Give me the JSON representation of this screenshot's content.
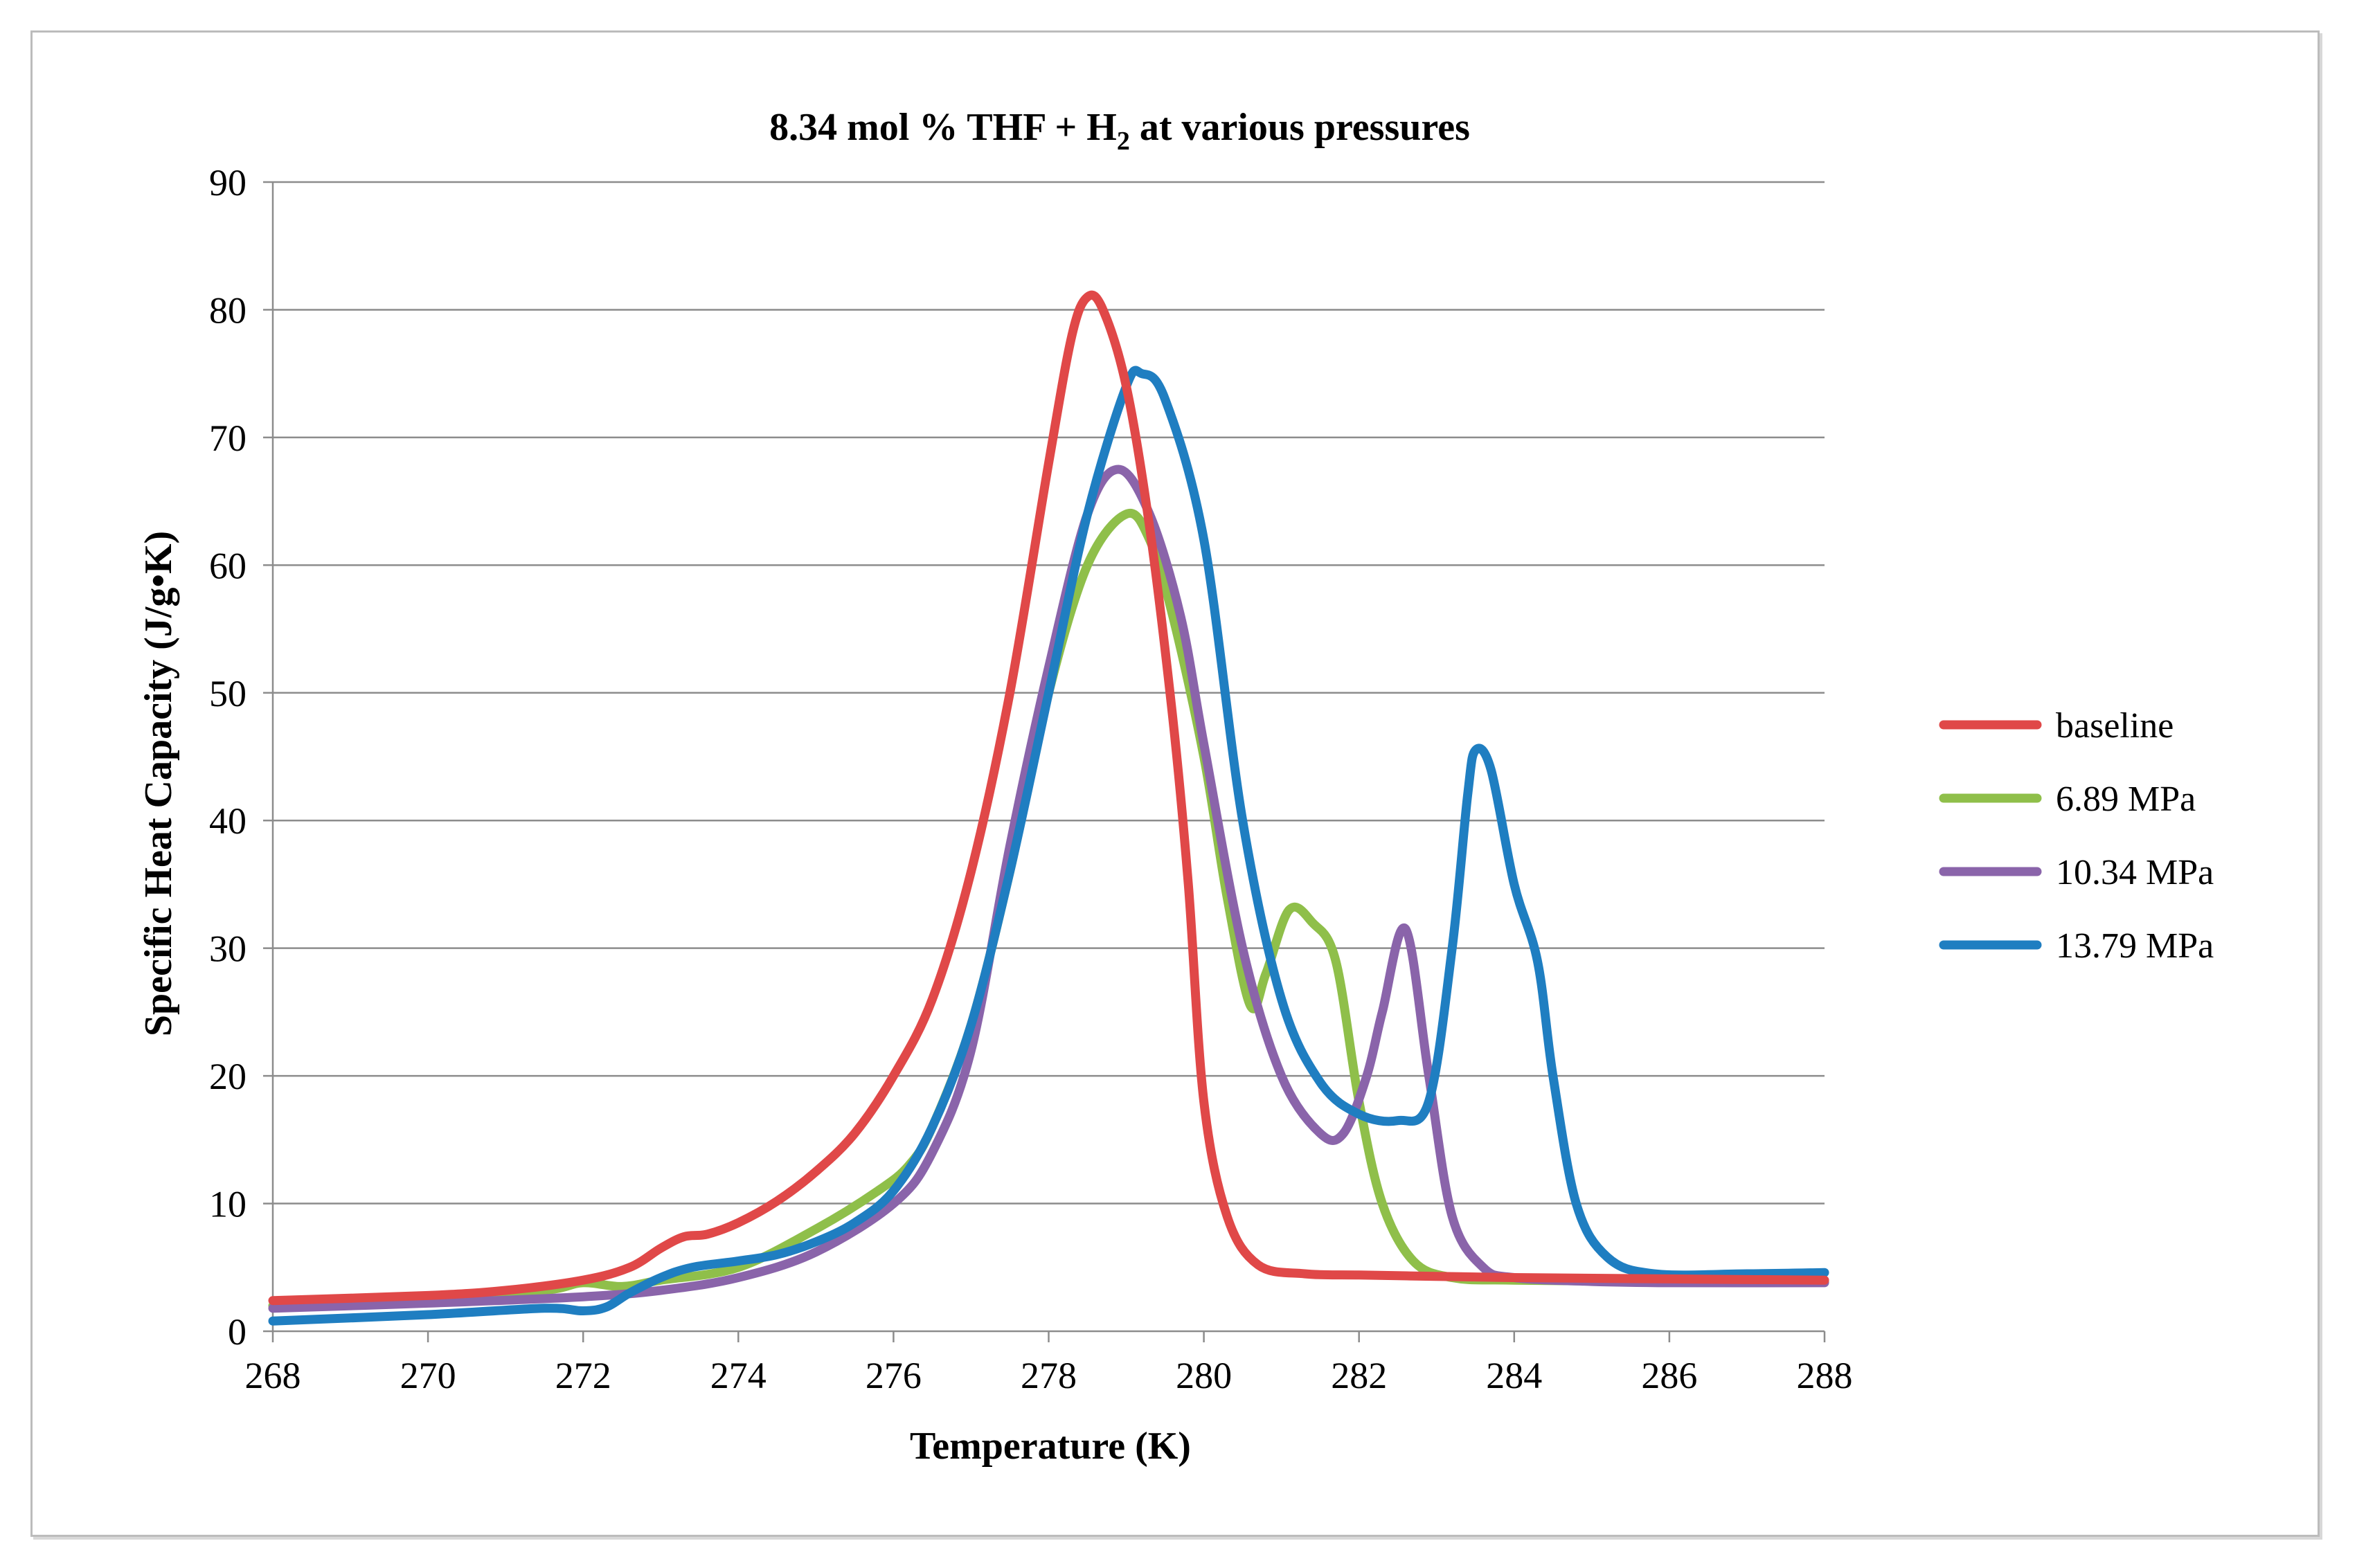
{
  "chart_data": {
    "type": "line",
    "title": "8.34 mol % THF + H",
    "title_subscript": "2",
    "title_suffix": " at various pressures",
    "xlabel": "Temperature (K)",
    "ylabel": "Specific  Heat Capacity (J/g•K)",
    "xlim": [
      268,
      288
    ],
    "ylim": [
      0,
      90
    ],
    "x_ticks": [
      268,
      270,
      272,
      274,
      276,
      278,
      280,
      282,
      284,
      286,
      288
    ],
    "y_ticks": [
      0,
      10,
      20,
      30,
      40,
      50,
      60,
      70,
      80,
      90
    ],
    "grid": "horizontal",
    "legend_position": "right",
    "series": [
      {
        "name": "baseline",
        "color": "#e04848",
        "points": [
          [
            268,
            2.4
          ],
          [
            270,
            2.8
          ],
          [
            271,
            3.2
          ],
          [
            272,
            4.0
          ],
          [
            272.6,
            5.0
          ],
          [
            273.0,
            6.5
          ],
          [
            273.3,
            7.4
          ],
          [
            273.6,
            7.6
          ],
          [
            274,
            8.5
          ],
          [
            274.5,
            10.2
          ],
          [
            275,
            12.5
          ],
          [
            275.5,
            15.5
          ],
          [
            276,
            20
          ],
          [
            276.5,
            26
          ],
          [
            277,
            36
          ],
          [
            277.5,
            50
          ],
          [
            278,
            68
          ],
          [
            278.3,
            78
          ],
          [
            278.5,
            81
          ],
          [
            278.7,
            80
          ],
          [
            279,
            74
          ],
          [
            279.3,
            63
          ],
          [
            279.6,
            48
          ],
          [
            279.8,
            35
          ],
          [
            280,
            18
          ],
          [
            280.3,
            9
          ],
          [
            280.7,
            5.2
          ],
          [
            281.3,
            4.5
          ],
          [
            282,
            4.4
          ],
          [
            283,
            4.3
          ],
          [
            284,
            4.2
          ],
          [
            286,
            4.1
          ],
          [
            288,
            4.0
          ]
        ]
      },
      {
        "name": "6.89 MPa",
        "color": "#8fbf4a",
        "points": [
          [
            268,
            2.0
          ],
          [
            270,
            2.5
          ],
          [
            271.5,
            3.2
          ],
          [
            272,
            3.8
          ],
          [
            272.5,
            3.5
          ],
          [
            273,
            4.0
          ],
          [
            274,
            5.0
          ],
          [
            275,
            8.0
          ],
          [
            275.8,
            11.0
          ],
          [
            276.2,
            13.0
          ],
          [
            276.5,
            16.0
          ],
          [
            277,
            24.0
          ],
          [
            277.5,
            36.0
          ],
          [
            278,
            50.0
          ],
          [
            278.5,
            60.0
          ],
          [
            279,
            64.0
          ],
          [
            279.3,
            62.0
          ],
          [
            279.6,
            56.0
          ],
          [
            280,
            45.0
          ],
          [
            280.3,
            34.0
          ],
          [
            280.6,
            25.5
          ],
          [
            280.8,
            28.0
          ],
          [
            281.1,
            33.0
          ],
          [
            281.4,
            32.0
          ],
          [
            281.7,
            29.0
          ],
          [
            282,
            18.0
          ],
          [
            282.3,
            10.0
          ],
          [
            282.7,
            5.5
          ],
          [
            283.2,
            4.2
          ],
          [
            284,
            4.0
          ],
          [
            286,
            3.9
          ],
          [
            288,
            3.9
          ]
        ]
      },
      {
        "name": "10.34 MPa",
        "color": "#8a64aa",
        "points": [
          [
            268,
            1.8
          ],
          [
            270,
            2.2
          ],
          [
            272,
            2.7
          ],
          [
            273,
            3.2
          ],
          [
            274,
            4.2
          ],
          [
            275,
            6.2
          ],
          [
            276,
            10.0
          ],
          [
            276.5,
            14.0
          ],
          [
            277,
            22.0
          ],
          [
            277.5,
            38.0
          ],
          [
            278,
            52.0
          ],
          [
            278.5,
            64.0
          ],
          [
            278.9,
            67.5
          ],
          [
            279.3,
            64.0
          ],
          [
            279.7,
            56.0
          ],
          [
            280,
            46.0
          ],
          [
            280.5,
            30.0
          ],
          [
            281,
            20.0
          ],
          [
            281.5,
            15.5
          ],
          [
            281.8,
            15.5
          ],
          [
            282.1,
            20.0
          ],
          [
            282.3,
            25.0
          ],
          [
            282.6,
            31.5
          ],
          [
            282.9,
            20.0
          ],
          [
            283.2,
            9.0
          ],
          [
            283.6,
            5.0
          ],
          [
            284,
            4.2
          ],
          [
            285,
            3.9
          ],
          [
            286,
            3.8
          ],
          [
            288,
            3.8
          ]
        ]
      },
      {
        "name": "13.79 MPa",
        "color": "#1f7ec1",
        "points": [
          [
            268,
            0.8
          ],
          [
            270,
            1.3
          ],
          [
            271.5,
            1.8
          ],
          [
            272,
            1.6
          ],
          [
            272.3,
            1.9
          ],
          [
            272.6,
            3.0
          ],
          [
            273,
            4.2
          ],
          [
            273.4,
            5.0
          ],
          [
            274,
            5.5
          ],
          [
            274.5,
            6.0
          ],
          [
            275,
            7.0
          ],
          [
            275.5,
            8.5
          ],
          [
            276,
            11.0
          ],
          [
            276.5,
            16.0
          ],
          [
            277,
            24.0
          ],
          [
            277.5,
            36.0
          ],
          [
            278,
            50.0
          ],
          [
            278.5,
            64.0
          ],
          [
            279,
            74.0
          ],
          [
            279.2,
            75.0
          ],
          [
            279.5,
            73.0
          ],
          [
            280,
            62.0
          ],
          [
            280.5,
            40.0
          ],
          [
            281,
            26.0
          ],
          [
            281.5,
            19.5
          ],
          [
            282,
            17.0
          ],
          [
            282.5,
            16.5
          ],
          [
            282.9,
            18.0
          ],
          [
            283.2,
            30.0
          ],
          [
            283.4,
            42.0
          ],
          [
            283.5,
            45.5
          ],
          [
            283.7,
            44.0
          ],
          [
            284,
            35.0
          ],
          [
            284.3,
            29.0
          ],
          [
            284.5,
            20.0
          ],
          [
            284.8,
            10.0
          ],
          [
            285.2,
            5.8
          ],
          [
            285.8,
            4.5
          ],
          [
            287,
            4.5
          ],
          [
            288,
            4.6
          ]
        ]
      }
    ]
  }
}
